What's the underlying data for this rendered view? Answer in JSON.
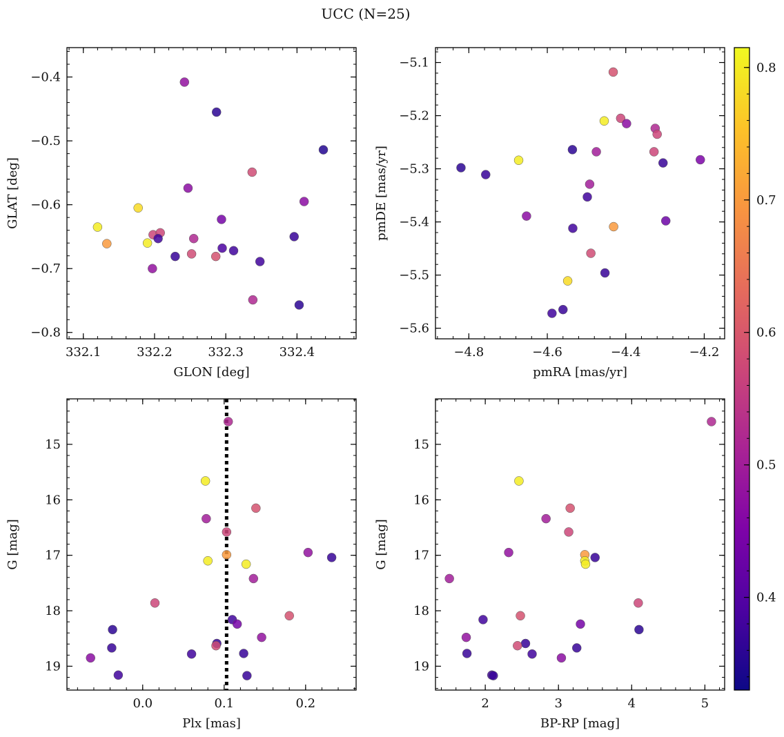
{
  "title": "UCC (N=25)",
  "colorbar": {
    "colormap": "plasma",
    "range": [
      0.33,
      0.815
    ],
    "ticks": [
      0.4,
      0.5,
      0.6,
      0.7,
      0.8
    ],
    "tick_labels": [
      "0.4",
      "0.5",
      "0.6",
      "0.7",
      "0.8"
    ]
  },
  "chart_data": [
    {
      "type": "scatter",
      "xlabel": "GLON [deg]",
      "ylabel": "GLAT [deg]",
      "xlim": [
        332.077,
        332.483
      ],
      "ylim": [
        -0.81,
        -0.354
      ],
      "xticks": [
        332.1,
        332.2,
        332.3,
        332.4
      ],
      "xtick_labels": [
        "332.1",
        "332.2",
        "332.3",
        "332.4"
      ],
      "yticks": [
        -0.4,
        -0.5,
        -0.6,
        -0.7,
        -0.8
      ],
      "ytick_labels": [
        "−0.4",
        "−0.5",
        "−0.6",
        "−0.7",
        "−0.8"
      ],
      "invert_y": false,
      "points": [
        {
          "x": 332.242,
          "y": -0.408,
          "c": 0.48
        },
        {
          "x": 332.287,
          "y": -0.455,
          "c": 0.36
        },
        {
          "x": 332.437,
          "y": -0.514,
          "c": 0.35
        },
        {
          "x": 332.337,
          "y": -0.549,
          "c": 0.58
        },
        {
          "x": 332.247,
          "y": -0.574,
          "c": 0.47
        },
        {
          "x": 332.41,
          "y": -0.595,
          "c": 0.47
        },
        {
          "x": 332.177,
          "y": -0.605,
          "c": 0.78
        },
        {
          "x": 332.294,
          "y": -0.623,
          "c": 0.44
        },
        {
          "x": 332.12,
          "y": -0.635,
          "c": 0.8
        },
        {
          "x": 332.198,
          "y": -0.647,
          "c": 0.57
        },
        {
          "x": 332.208,
          "y": -0.644,
          "c": 0.57
        },
        {
          "x": 332.205,
          "y": -0.653,
          "c": 0.38
        },
        {
          "x": 332.255,
          "y": -0.653,
          "c": 0.52
        },
        {
          "x": 332.396,
          "y": -0.65,
          "c": 0.37
        },
        {
          "x": 332.133,
          "y": -0.661,
          "c": 0.7
        },
        {
          "x": 332.19,
          "y": -0.66,
          "c": 0.8
        },
        {
          "x": 332.295,
          "y": -0.668,
          "c": 0.39
        },
        {
          "x": 332.311,
          "y": -0.672,
          "c": 0.38
        },
        {
          "x": 332.229,
          "y": -0.681,
          "c": 0.37
        },
        {
          "x": 332.252,
          "y": -0.677,
          "c": 0.58
        },
        {
          "x": 332.286,
          "y": -0.681,
          "c": 0.59
        },
        {
          "x": 332.348,
          "y": -0.689,
          "c": 0.38
        },
        {
          "x": 332.197,
          "y": -0.7,
          "c": 0.48
        },
        {
          "x": 332.338,
          "y": -0.749,
          "c": 0.52
        },
        {
          "x": 332.403,
          "y": -0.757,
          "c": 0.36
        }
      ]
    },
    {
      "type": "scatter",
      "xlabel": "pmRA [mas/yr]",
      "ylabel": "pmDE [mas/yr]",
      "xlim": [
        -4.885,
        -4.148
      ],
      "ylim": [
        -5.62,
        -5.072
      ],
      "xticks": [
        -4.8,
        -4.6,
        -4.4,
        -4.2
      ],
      "xtick_labels": [
        "−4.8",
        "−4.6",
        "−4.4",
        "−4.2"
      ],
      "yticks": [
        -5.1,
        -5.2,
        -5.3,
        -5.4,
        -5.5,
        -5.6
      ],
      "ytick_labels": [
        "−5.1",
        "−5.2",
        "−5.3",
        "−5.4",
        "−5.5",
        "−5.6"
      ],
      "invert_y": false,
      "points": [
        {
          "x": -4.432,
          "y": -5.118,
          "c": 0.59
        },
        {
          "x": -4.413,
          "y": -5.205,
          "c": 0.57
        },
        {
          "x": -4.455,
          "y": -5.21,
          "c": 0.8
        },
        {
          "x": -4.398,
          "y": -5.215,
          "c": 0.47
        },
        {
          "x": -4.325,
          "y": -5.224,
          "c": 0.52
        },
        {
          "x": -4.32,
          "y": -5.235,
          "c": 0.57
        },
        {
          "x": -4.536,
          "y": -5.264,
          "c": 0.36
        },
        {
          "x": -4.475,
          "y": -5.268,
          "c": 0.5
        },
        {
          "x": -4.328,
          "y": -5.268,
          "c": 0.57
        },
        {
          "x": -4.673,
          "y": -5.284,
          "c": 0.8
        },
        {
          "x": -4.21,
          "y": -5.283,
          "c": 0.45
        },
        {
          "x": -4.305,
          "y": -5.289,
          "c": 0.37
        },
        {
          "x": -4.82,
          "y": -5.298,
          "c": 0.36
        },
        {
          "x": -4.757,
          "y": -5.311,
          "c": 0.37
        },
        {
          "x": -4.492,
          "y": -5.329,
          "c": 0.5
        },
        {
          "x": -4.498,
          "y": -5.353,
          "c": 0.38
        },
        {
          "x": -4.653,
          "y": -5.389,
          "c": 0.47
        },
        {
          "x": -4.298,
          "y": -5.398,
          "c": 0.43
        },
        {
          "x": -4.535,
          "y": -5.412,
          "c": 0.38
        },
        {
          "x": -4.431,
          "y": -5.409,
          "c": 0.7
        },
        {
          "x": -4.489,
          "y": -5.459,
          "c": 0.58
        },
        {
          "x": -4.453,
          "y": -5.496,
          "c": 0.37
        },
        {
          "x": -4.548,
          "y": -5.511,
          "c": 0.78
        },
        {
          "x": -4.56,
          "y": -5.565,
          "c": 0.37
        },
        {
          "x": -4.588,
          "y": -5.572,
          "c": 0.38
        }
      ]
    },
    {
      "type": "scatter",
      "xlabel": "Plx [mas]",
      "ylabel": "G [mag]",
      "xlim": [
        -0.093,
        0.262
      ],
      "ylim": [
        19.43,
        14.18
      ],
      "xticks": [
        0.0,
        0.1,
        0.2
      ],
      "xtick_labels": [
        "0.0",
        "0.1",
        "0.2"
      ],
      "yticks": [
        15,
        16,
        17,
        18,
        19
      ],
      "ytick_labels": [
        "15",
        "16",
        "17",
        "18",
        "19"
      ],
      "invert_y": true,
      "vline": {
        "x": 0.103,
        "style": "dotted"
      },
      "points": [
        {
          "x": 0.105,
          "y": 14.59,
          "c": 0.52
        },
        {
          "x": 0.077,
          "y": 15.66,
          "c": 0.8
        },
        {
          "x": 0.139,
          "y": 16.15,
          "c": 0.59
        },
        {
          "x": 0.078,
          "y": 16.34,
          "c": 0.5
        },
        {
          "x": 0.103,
          "y": 16.58,
          "c": 0.57
        },
        {
          "x": 0.203,
          "y": 16.95,
          "c": 0.48
        },
        {
          "x": 0.103,
          "y": 16.99,
          "c": 0.7
        },
        {
          "x": 0.232,
          "y": 17.04,
          "c": 0.37
        },
        {
          "x": 0.08,
          "y": 17.1,
          "c": 0.8
        },
        {
          "x": 0.127,
          "y": 17.16,
          "c": 0.8
        },
        {
          "x": 0.136,
          "y": 17.42,
          "c": 0.5
        },
        {
          "x": 0.015,
          "y": 17.86,
          "c": 0.57
        },
        {
          "x": 0.18,
          "y": 18.09,
          "c": 0.59
        },
        {
          "x": 0.11,
          "y": 18.16,
          "c": 0.38
        },
        {
          "x": 0.116,
          "y": 18.24,
          "c": 0.44
        },
        {
          "x": -0.037,
          "y": 18.34,
          "c": 0.36
        },
        {
          "x": 0.146,
          "y": 18.48,
          "c": 0.48
        },
        {
          "x": 0.091,
          "y": 18.59,
          "c": 0.37
        },
        {
          "x": 0.09,
          "y": 18.63,
          "c": 0.58
        },
        {
          "x": -0.038,
          "y": 18.67,
          "c": 0.37
        },
        {
          "x": 0.06,
          "y": 18.78,
          "c": 0.38
        },
        {
          "x": 0.124,
          "y": 18.77,
          "c": 0.37
        },
        {
          "x": -0.064,
          "y": 18.85,
          "c": 0.47
        },
        {
          "x": -0.03,
          "y": 19.16,
          "c": 0.38
        },
        {
          "x": 0.128,
          "y": 19.17,
          "c": 0.37
        }
      ]
    },
    {
      "type": "scatter",
      "xlabel": "BP-RP [mag]",
      "ylabel": "G [mag]",
      "xlim": [
        1.32,
        5.27
      ],
      "ylim": [
        19.43,
        14.18
      ],
      "xticks": [
        2,
        3,
        4,
        5
      ],
      "xtick_labels": [
        "2",
        "3",
        "4",
        "5"
      ],
      "yticks": [
        15,
        16,
        17,
        18,
        19
      ],
      "ytick_labels": [
        "15",
        "16",
        "17",
        "18",
        "19"
      ],
      "invert_y": true,
      "points": [
        {
          "x": 5.09,
          "y": 14.59,
          "c": 0.52
        },
        {
          "x": 2.46,
          "y": 15.66,
          "c": 0.8
        },
        {
          "x": 3.16,
          "y": 16.15,
          "c": 0.59
        },
        {
          "x": 2.83,
          "y": 16.34,
          "c": 0.5
        },
        {
          "x": 3.14,
          "y": 16.58,
          "c": 0.57
        },
        {
          "x": 2.32,
          "y": 16.95,
          "c": 0.48
        },
        {
          "x": 3.36,
          "y": 16.99,
          "c": 0.7
        },
        {
          "x": 3.5,
          "y": 17.04,
          "c": 0.37
        },
        {
          "x": 3.36,
          "y": 17.1,
          "c": 0.8
        },
        {
          "x": 3.37,
          "y": 17.16,
          "c": 0.8
        },
        {
          "x": 1.51,
          "y": 17.42,
          "c": 0.5
        },
        {
          "x": 4.09,
          "y": 17.86,
          "c": 0.57
        },
        {
          "x": 2.48,
          "y": 18.09,
          "c": 0.59
        },
        {
          "x": 1.97,
          "y": 18.16,
          "c": 0.38
        },
        {
          "x": 3.3,
          "y": 18.24,
          "c": 0.44
        },
        {
          "x": 4.1,
          "y": 18.34,
          "c": 0.36
        },
        {
          "x": 1.74,
          "y": 18.48,
          "c": 0.48
        },
        {
          "x": 2.55,
          "y": 18.59,
          "c": 0.37
        },
        {
          "x": 2.44,
          "y": 18.63,
          "c": 0.58
        },
        {
          "x": 3.25,
          "y": 18.67,
          "c": 0.37
        },
        {
          "x": 2.64,
          "y": 18.78,
          "c": 0.38
        },
        {
          "x": 1.75,
          "y": 18.77,
          "c": 0.37
        },
        {
          "x": 3.04,
          "y": 18.85,
          "c": 0.47
        },
        {
          "x": 2.09,
          "y": 19.16,
          "c": 0.38
        },
        {
          "x": 2.11,
          "y": 19.17,
          "c": 0.37
        }
      ]
    }
  ]
}
